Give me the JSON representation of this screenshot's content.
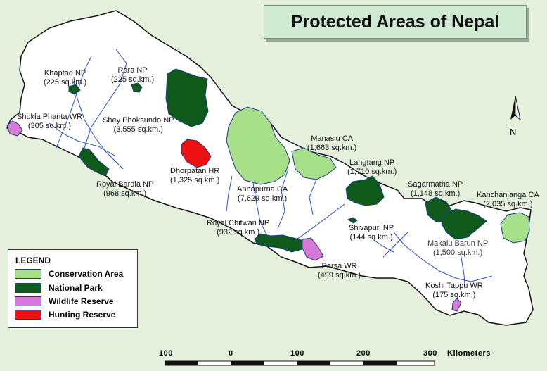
{
  "title": "Protected Areas of Nepal",
  "legend": {
    "title": "LEGEND",
    "items": [
      {
        "label": "Conservation Area",
        "color": "#a8e08a"
      },
      {
        "label": "National Park",
        "color": "#0f5a1a"
      },
      {
        "label": "Wildlife Reserve",
        "color": "#d878d8"
      },
      {
        "label": "Hunting Reserve",
        "color": "#ee1111"
      }
    ]
  },
  "north_label": "N",
  "scale": {
    "ticks": [
      "100",
      "0",
      "100",
      "200",
      "300"
    ],
    "unit": "Kilometers"
  },
  "areas": [
    {
      "name": "Khaptad NP",
      "size": "(225 sq.km.)",
      "category": "National Park"
    },
    {
      "name": "Rara NP",
      "size": "(225 sq.km.)",
      "category": "National Park"
    },
    {
      "name": "Shukla Phanta WR",
      "size": "(305 sq.km.)",
      "category": "Wildlife Reserve"
    },
    {
      "name": "Shey Phoksundo NP",
      "size": "(3,555 sq.km.)",
      "category": "National Park"
    },
    {
      "name": "Royal Bardia NP",
      "size": "(968 sq.km.)",
      "category": "National Park"
    },
    {
      "name": "Dhorpatan HR",
      "size": "(1,325 sq.km.)",
      "category": "Hunting Reserve"
    },
    {
      "name": "Annapurna CA",
      "size": "(7,629 sq.km.)",
      "category": "Conservation Area"
    },
    {
      "name": "Manaslu CA",
      "size": "(1,663 sq.km.)",
      "category": "Conservation Area"
    },
    {
      "name": "Langtang NP",
      "size": "(1,710 sq.km.)",
      "category": "National Park"
    },
    {
      "name": "Royal Chitwan NP",
      "size": "(932 sq.km.)",
      "category": "National Park"
    },
    {
      "name": "Shivapuri NP",
      "size": "(144 sq.km.)",
      "category": "National Park"
    },
    {
      "name": "Parsa WR",
      "size": "(499 sq.km.)",
      "category": "Wildlife Reserve"
    },
    {
      "name": "Sagarmatha NP",
      "size": "(1,148 sq.km.)",
      "category": "National Park"
    },
    {
      "name": "Makalu Barun NP",
      "size": "(1,500 sq.km.)",
      "category": "National Park"
    },
    {
      "name": "Kanchanjanga CA",
      "size": "(2,035 sq.km.)",
      "category": "Conservation Area"
    },
    {
      "name": "Koshi Tappu WR",
      "size": "(175 sq.km.)",
      "category": "Wildlife Reserve"
    }
  ]
}
